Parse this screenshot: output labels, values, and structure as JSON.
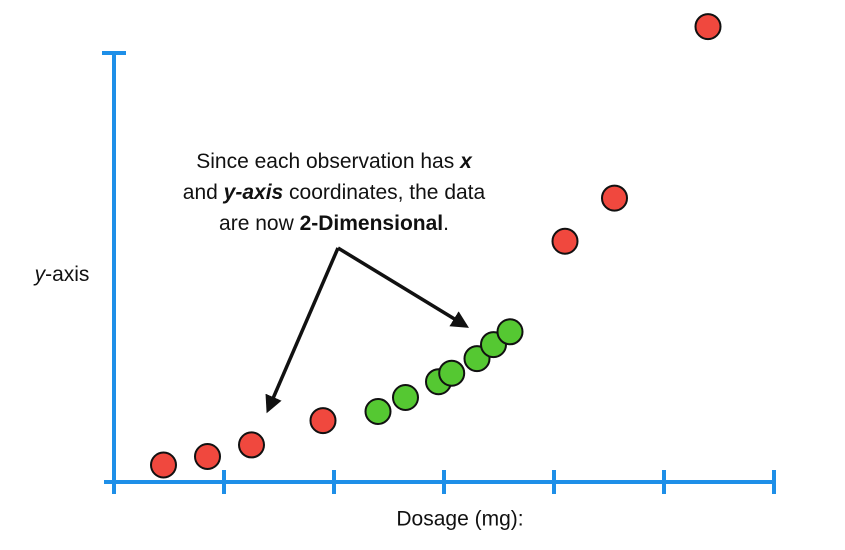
{
  "chart_data": {
    "type": "scatter",
    "xlabel": "Dosage (mg):",
    "ylabel": {
      "italic": "y",
      "rest": "-axis"
    },
    "x_ticks": 7,
    "grid": false,
    "legend": "none",
    "series": [
      {
        "color": "#f0483e",
        "points": [
          {
            "x": 0.45,
            "y": 0.28
          },
          {
            "x": 0.85,
            "y": 0.42
          },
          {
            "x": 1.25,
            "y": 0.61
          },
          {
            "x": 1.9,
            "y": 1.01
          },
          {
            "x": 4.1,
            "y": 3.96
          },
          {
            "x": 4.55,
            "y": 4.67
          },
          {
            "x": 5.4,
            "y": 7.49
          }
        ]
      },
      {
        "color": "#55c832",
        "points": [
          {
            "x": 2.4,
            "y": 1.16
          },
          {
            "x": 2.65,
            "y": 1.39
          },
          {
            "x": 2.95,
            "y": 1.65
          },
          {
            "x": 3.07,
            "y": 1.79
          },
          {
            "x": 3.3,
            "y": 2.03
          },
          {
            "x": 3.45,
            "y": 2.26
          },
          {
            "x": 3.6,
            "y": 2.47
          }
        ]
      }
    ],
    "annotation": {
      "lines": [
        [
          {
            "text": "Since each observation has ",
            "bold": false,
            "italic": false
          },
          {
            "text": "x",
            "bold": true,
            "italic": true
          }
        ],
        [
          {
            "text": "and ",
            "bold": false,
            "italic": false
          },
          {
            "text": "y-axis",
            "bold": true,
            "italic": true
          },
          {
            "text": " coordinates, the data",
            "bold": false,
            "italic": false
          }
        ],
        [
          {
            "text": "are now ",
            "bold": false,
            "italic": false
          },
          {
            "text": "2-Dimensional",
            "bold": true,
            "italic": false
          },
          {
            "text": ".",
            "bold": false,
            "italic": false
          }
        ]
      ]
    }
  },
  "colors": {
    "axis": "#1e8fe8",
    "arrow": "#111111",
    "point_stroke": "#111111"
  }
}
